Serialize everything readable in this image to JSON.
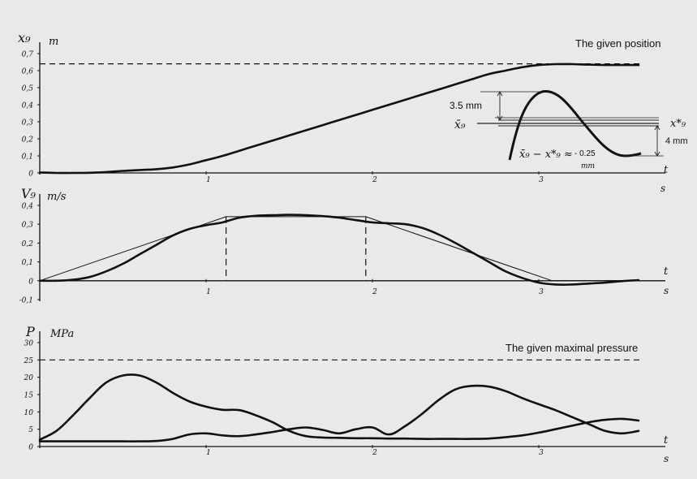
{
  "chart_data": [
    {
      "type": "line",
      "ylabel_symbol": "x₉",
      "unit": "m",
      "annotation": "The given position",
      "xlabel": "s",
      "x_axis_letter": "t",
      "x_ticks": [
        "1",
        "2",
        "3"
      ],
      "y_ticks": [
        {
          "value": 0,
          "label": "0"
        },
        {
          "value": 0.1,
          "label": "0,1"
        },
        {
          "value": 0.2,
          "label": "0,2"
        },
        {
          "value": 0.3,
          "label": "0,3"
        },
        {
          "value": 0.4,
          "label": "0,4"
        },
        {
          "value": 0.5,
          "label": "0,5"
        },
        {
          "value": 0.6,
          "label": "0,6"
        },
        {
          "value": 0.7,
          "label": "0,7"
        }
      ],
      "ylim": [
        0,
        0.7
      ],
      "xlim": [
        0,
        3.7
      ],
      "reference_line": {
        "y": 0.64,
        "style": "dashed"
      },
      "series": [
        {
          "x": [
            0,
            0.1,
            0.2,
            0.3,
            0.4,
            0.5,
            0.6,
            0.7,
            0.8,
            0.9,
            1.0,
            1.1,
            1.2,
            1.3,
            1.4,
            1.5,
            1.6,
            1.7,
            1.8,
            1.9,
            2.0,
            2.1,
            2.2,
            2.3,
            2.4,
            2.5,
            2.6,
            2.7,
            2.8,
            2.9,
            3.0,
            3.1,
            3.2,
            3.3,
            3.4,
            3.5,
            3.6
          ],
          "y": [
            0.003,
            0,
            0,
            0.001,
            0.005,
            0.012,
            0.017,
            0.022,
            0.032,
            0.05,
            0.075,
            0.1,
            0.13,
            0.16,
            0.19,
            0.22,
            0.25,
            0.28,
            0.31,
            0.34,
            0.37,
            0.4,
            0.43,
            0.46,
            0.49,
            0.52,
            0.55,
            0.58,
            0.6,
            0.62,
            0.633,
            0.638,
            0.638,
            0.635,
            0.633,
            0.633,
            0.633
          ]
        }
      ],
      "inset": {
        "labels": {
          "overshoot": "3.5 mm",
          "undershoot": "4 mm",
          "xbar": "x̄₉",
          "xstar": "x*₉",
          "error": "x̄₉ − x*₉ ≈",
          "error_value": "- 0.25",
          "error_unit": "mm"
        }
      }
    },
    {
      "type": "line",
      "ylabel_symbol": "V₉",
      "unit": "m/s",
      "xlabel": "s",
      "x_axis_letter": "t",
      "x_ticks": [
        "1",
        "2",
        "3"
      ],
      "y_ticks": [
        {
          "value": -0.1,
          "label": "-0,1"
        },
        {
          "value": 0,
          "label": "0"
        },
        {
          "value": 0.1,
          "label": "0,1"
        },
        {
          "value": 0.2,
          "label": "0,2"
        },
        {
          "value": 0.3,
          "label": "0,3"
        },
        {
          "value": 0.4,
          "label": "0,4"
        }
      ],
      "ylim": [
        -0.1,
        0.4
      ],
      "xlim": [
        0,
        3.7
      ],
      "series": [
        {
          "style": "thick",
          "x": [
            0,
            0.1,
            0.2,
            0.3,
            0.4,
            0.5,
            0.6,
            0.7,
            0.8,
            0.9,
            1.0,
            1.1,
            1.2,
            1.3,
            1.4,
            1.5,
            1.6,
            1.7,
            1.8,
            1.9,
            2.0,
            2.1,
            2.2,
            2.3,
            2.4,
            2.5,
            2.6,
            2.7,
            2.8,
            2.9,
            3.0,
            3.1,
            3.2,
            3.3,
            3.4,
            3.5,
            3.6
          ],
          "y": [
            0,
            0,
            0.005,
            0.02,
            0.05,
            0.09,
            0.14,
            0.19,
            0.24,
            0.275,
            0.295,
            0.31,
            0.335,
            0.345,
            0.348,
            0.35,
            0.348,
            0.343,
            0.335,
            0.322,
            0.31,
            0.305,
            0.3,
            0.28,
            0.245,
            0.2,
            0.15,
            0.1,
            0.05,
            0.015,
            -0.01,
            -0.02,
            -0.02,
            -0.015,
            -0.01,
            -0.002,
            0.003
          ]
        },
        {
          "style": "thin",
          "x": [
            0,
            1.12,
            1.96,
            3.08,
            3.6
          ],
          "y": [
            0,
            0.34,
            0.34,
            0,
            0
          ]
        }
      ],
      "vertical_markers": [
        {
          "x": 1.12,
          "y_top": 0.34,
          "style": "dashed"
        },
        {
          "x": 1.96,
          "y_top": 0.34,
          "style": "dashed"
        }
      ]
    },
    {
      "type": "line",
      "ylabel_symbol": "P",
      "unit": "MPa",
      "annotation": "The given maximal pressure",
      "xlabel": "s",
      "x_axis_letter": "t",
      "x_ticks": [
        "1",
        "2",
        "3"
      ],
      "y_ticks": [
        {
          "value": 0,
          "label": "0"
        },
        {
          "value": 5,
          "label": "5"
        },
        {
          "value": 10,
          "label": "10"
        },
        {
          "value": 15,
          "label": "15"
        },
        {
          "value": 20,
          "label": "20"
        },
        {
          "value": 25,
          "label": "25"
        },
        {
          "value": 30,
          "label": "30"
        }
      ],
      "ylim": [
        0,
        30
      ],
      "xlim": [
        0,
        3.7
      ],
      "reference_line": {
        "y": 25,
        "style": "dashed"
      },
      "series": [
        {
          "x": [
            0,
            0.1,
            0.2,
            0.3,
            0.4,
            0.5,
            0.6,
            0.7,
            0.8,
            0.9,
            1.0,
            1.1,
            1.2,
            1.3,
            1.4,
            1.5,
            1.6,
            1.7,
            1.8,
            1.9,
            2.0,
            2.1,
            2.2,
            2.3,
            2.4,
            2.5,
            2.6,
            2.7,
            2.8,
            2.9,
            3.0,
            3.1,
            3.2,
            3.3,
            3.4,
            3.5,
            3.6
          ],
          "y": [
            2,
            4.5,
            9,
            14,
            18.5,
            20.5,
            20.5,
            18.5,
            15.5,
            13,
            11.5,
            10.6,
            10.5,
            9,
            7,
            4.5,
            3,
            2.6,
            2.5,
            2.4,
            2.4,
            2.3,
            2.3,
            2.2,
            2.2,
            2.2,
            2.2,
            2.3,
            2.7,
            3.2,
            4,
            5,
            6,
            7,
            7.7,
            8,
            7.5
          ]
        },
        {
          "x": [
            0,
            0.1,
            0.2,
            0.3,
            0.4,
            0.5,
            0.6,
            0.7,
            0.8,
            0.9,
            1.0,
            1.1,
            1.2,
            1.3,
            1.4,
            1.5,
            1.6,
            1.7,
            1.8,
            1.9,
            2.0,
            2.1,
            2.2,
            2.3,
            2.4,
            2.5,
            2.6,
            2.7,
            2.8,
            2.9,
            3.0,
            3.1,
            3.2,
            3.3,
            3.4,
            3.5,
            3.6
          ],
          "y": [
            1.5,
            1.5,
            1.5,
            1.5,
            1.5,
            1.5,
            1.5,
            1.6,
            2.2,
            3.5,
            3.8,
            3.2,
            3.0,
            3.5,
            4.2,
            5.0,
            5.5,
            4.8,
            3.8,
            5.0,
            5.5,
            3.5,
            6,
            9.5,
            13.5,
            16.5,
            17.5,
            17.3,
            16,
            14,
            12.2,
            10.5,
            8.5,
            6.5,
            4.5,
            3.8,
            4.5
          ]
        }
      ]
    }
  ]
}
